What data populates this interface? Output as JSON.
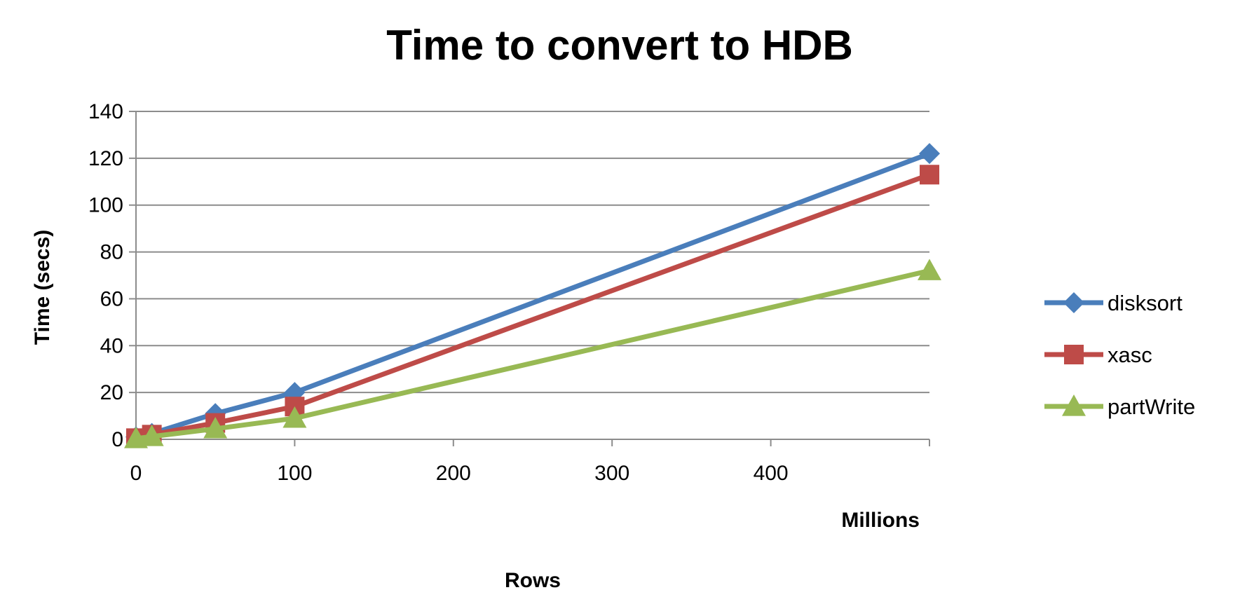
{
  "chart_data": {
    "type": "line",
    "title": "Time to convert to HDB",
    "xlabel": "Rows",
    "x_unit_label": "Millions",
    "ylabel": "Time (secs)",
    "xlim": [
      0,
      500
    ],
    "ylim": [
      0,
      140
    ],
    "x_ticks": [
      0,
      100,
      200,
      300,
      400
    ],
    "y_ticks": [
      0,
      20,
      40,
      60,
      80,
      100,
      120,
      140
    ],
    "grid": "horizontal",
    "legend_position": "right",
    "series": [
      {
        "name": "disksort",
        "color": "#4a7ebb",
        "marker": "diamond",
        "x": [
          0,
          10,
          50,
          100,
          500
        ],
        "y": [
          1,
          2.5,
          11,
          20,
          122
        ]
      },
      {
        "name": "xasc",
        "color": "#be4b48",
        "marker": "square",
        "x": [
          0,
          10,
          50,
          100,
          500
        ],
        "y": [
          0.5,
          2,
          7,
          14,
          113
        ]
      },
      {
        "name": "partWrite",
        "color": "#98b954",
        "marker": "triangle",
        "x": [
          0,
          10,
          50,
          100,
          500
        ],
        "y": [
          0.3,
          1.2,
          4.5,
          9,
          72
        ]
      }
    ]
  }
}
